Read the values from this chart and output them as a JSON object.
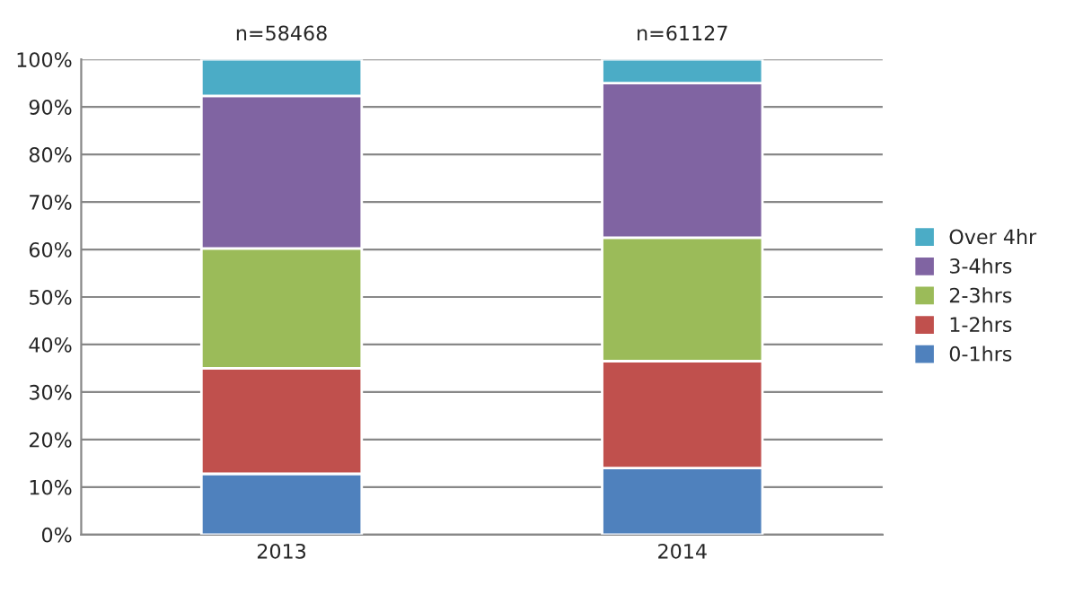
{
  "chart_data": {
    "type": "bar",
    "stacked": true,
    "categories": [
      "2013",
      "2014"
    ],
    "series": [
      {
        "name": "0-1hrs",
        "color": "#4f81bd",
        "values": [
          12.8,
          14.0
        ]
      },
      {
        "name": "1-2hrs",
        "color": "#c0504d",
        "values": [
          22.2,
          22.5
        ]
      },
      {
        "name": "2-3hrs",
        "color": "#9bbb59",
        "values": [
          25.2,
          26.0
        ]
      },
      {
        "name": "3-4hrs",
        "color": "#8064a2",
        "values": [
          32.1,
          32.5
        ]
      },
      {
        "name": "Over 4hr",
        "color": "#4bacc6",
        "values": [
          7.7,
          5.0
        ]
      }
    ],
    "ylim": [
      0,
      100
    ],
    "yticks": [
      {
        "value": 0,
        "label": "0%"
      },
      {
        "value": 10,
        "label": "10%"
      },
      {
        "value": 20,
        "label": "20%"
      },
      {
        "value": 30,
        "label": "30%"
      },
      {
        "value": 40,
        "label": "40%"
      },
      {
        "value": 50,
        "label": "50%"
      },
      {
        "value": 60,
        "label": "60%"
      },
      {
        "value": 70,
        "label": "70%"
      },
      {
        "value": 80,
        "label": "80%"
      },
      {
        "value": 90,
        "label": "90%"
      },
      {
        "value": 100,
        "label": "100%"
      }
    ],
    "grid": "y",
    "legend": "right",
    "annotations": [
      {
        "text": "n=58468",
        "x": "2013",
        "y": 100
      },
      {
        "text": "n=61127",
        "x": "2014",
        "y": 100
      }
    ]
  }
}
